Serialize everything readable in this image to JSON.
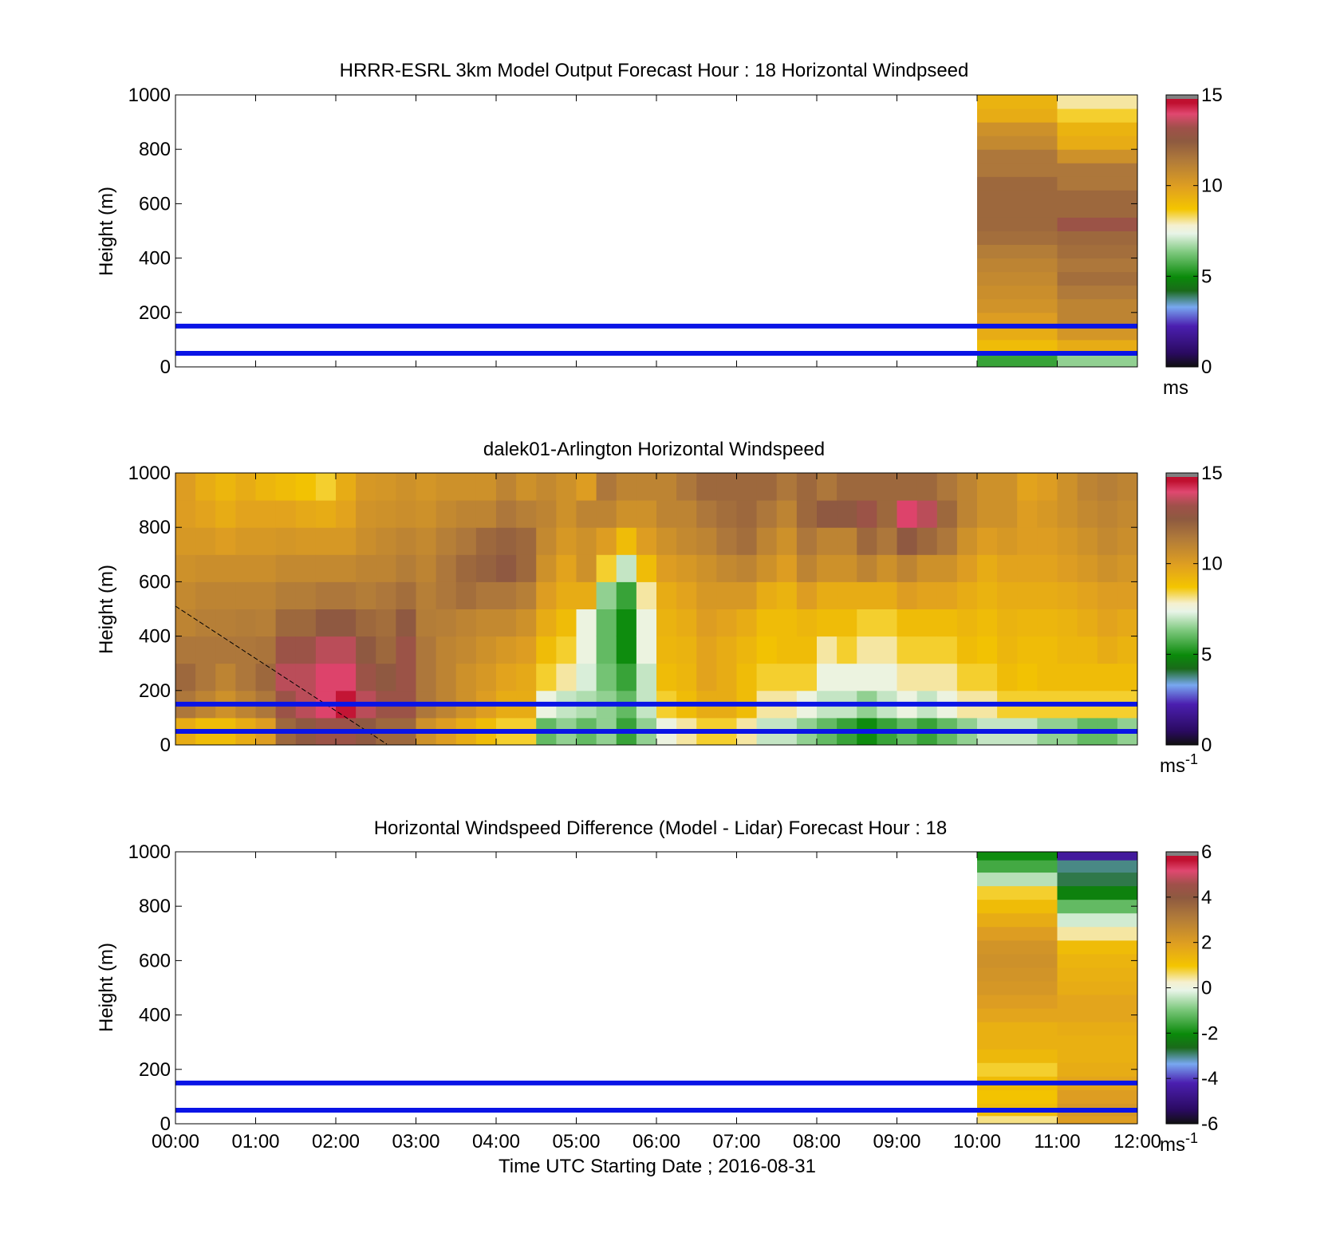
{
  "figure": {
    "xlabel": "Time UTC  Starting Date ; 2016-08-31",
    "x_ticks": [
      "00:00",
      "01:00",
      "02:00",
      "03:00",
      "04:00",
      "05:00",
      "06:00",
      "07:00",
      "08:00",
      "09:00",
      "10:00",
      "11:00",
      "12:00"
    ],
    "y_ticks": [
      "0",
      "200",
      "400",
      "600",
      "800",
      "1000"
    ],
    "ylabel": "Height (m)"
  },
  "colors": {
    "overlay_line": "#0a14e6",
    "colormap_stops": [
      "#101010",
      "#2a0a60",
      "#4b1fb0",
      "#78a8f0",
      "#1a6a1a",
      "#0a8a0a",
      "#7cc87c",
      "#e8f4e8",
      "#f5f0d0",
      "#f4c500",
      "#e0a020",
      "#b07a3a",
      "#8e5a40",
      "#a0504a",
      "#e04870",
      "#c01030",
      "#808080"
    ]
  },
  "chart_data": [
    {
      "type": "heatmap",
      "title": "HRRR-ESRL 3km Model Output   Forecast Hour : 18 Horizontal Windpseed",
      "ylabel": "Height (m)",
      "xlim": [
        "00:00",
        "12:00"
      ],
      "ylim": [
        0,
        1000
      ],
      "grid": false,
      "colorbar": {
        "ticks": [
          "0",
          "5",
          "10",
          "15"
        ],
        "range": [
          0,
          15
        ],
        "unit": "ms"
      },
      "overlay_lines_height_m": [
        150,
        50
      ],
      "columns": [
        {
          "time_start": "10:00",
          "time_end": "11:00",
          "height_m": [
            25,
            75,
            125,
            175,
            225,
            275,
            325,
            375,
            425,
            475,
            525,
            575,
            625,
            675,
            725,
            775,
            825,
            875,
            925,
            975
          ],
          "speed_ms": [
            5.5,
            9.0,
            9.5,
            10.0,
            10.4,
            10.6,
            10.8,
            11.0,
            11.3,
            11.8,
            12.0,
            12.0,
            12.0,
            12.0,
            11.5,
            11.5,
            10.8,
            10.5,
            9.5,
            9.3
          ]
        },
        {
          "time_start": "11:00",
          "time_end": "12:00",
          "height_m": [
            25,
            75,
            125,
            175,
            225,
            275,
            325,
            375,
            425,
            475,
            525,
            575,
            625,
            675,
            725,
            775,
            825,
            875,
            925,
            975
          ],
          "speed_ms": [
            6.5,
            9.5,
            10.3,
            11.0,
            11.0,
            11.4,
            11.8,
            11.5,
            11.8,
            12.0,
            13.0,
            12.0,
            12.0,
            11.5,
            11.5,
            10.5,
            9.5,
            9.3,
            8.5,
            8.0
          ]
        }
      ]
    },
    {
      "type": "heatmap",
      "title": "dalek01-Arlington  Horizontal Windspeed",
      "ylabel": "Height (m)",
      "xlim": [
        "00:00",
        "12:00"
      ],
      "ylim": [
        0,
        1000
      ],
      "grid": false,
      "colorbar": {
        "ticks": [
          "0",
          "5",
          "10",
          "15"
        ],
        "range": [
          0,
          15
        ],
        "unit": "ms-1"
      },
      "overlay_lines_height_m": [
        150,
        50
      ],
      "time_bins": [
        "00:00",
        "00:15",
        "00:30",
        "00:45",
        "01:00",
        "01:15",
        "01:30",
        "01:45",
        "02:00",
        "02:15",
        "02:30",
        "02:45",
        "03:00",
        "03:15",
        "03:30",
        "03:45",
        "04:00",
        "04:15",
        "04:30",
        "04:45",
        "05:00",
        "05:15",
        "05:30",
        "05:45",
        "06:00",
        "06:15",
        "06:30",
        "06:45",
        "07:00",
        "07:15",
        "07:30",
        "07:45",
        "08:00",
        "08:15",
        "08:30",
        "08:45",
        "09:00",
        "09:15",
        "09:30",
        "09:45",
        "10:00",
        "10:15",
        "10:30",
        "10:45",
        "11:00",
        "11:15",
        "11:30",
        "11:45"
      ],
      "height_bins_m": [
        0,
        100,
        200,
        300,
        400,
        500,
        600,
        700,
        800,
        900
      ],
      "speed_ms": [
        [
          9.5,
          11.5,
          12,
          11.5,
          11,
          10.8,
          10.5,
          10.2,
          10,
          10
        ],
        [
          9,
          11,
          11.5,
          11.5,
          11.2,
          11,
          10.6,
          10.2,
          9.8,
          9.5
        ],
        [
          9,
          10.5,
          11,
          11.5,
          11.2,
          11,
          10.6,
          10,
          9.5,
          9.2
        ],
        [
          9.5,
          11,
          11.5,
          11.5,
          11.3,
          11,
          10.6,
          10.2,
          9.8,
          9.5
        ],
        [
          10,
          11.5,
          12,
          11.6,
          11.2,
          11,
          10.6,
          10.2,
          9.8,
          9.2
        ],
        [
          12,
          13,
          13.5,
          13,
          12,
          11.3,
          10.8,
          10.3,
          9.8,
          9
        ],
        [
          12.5,
          13.5,
          13.5,
          13,
          12,
          11.3,
          10.8,
          10.2,
          9.6,
          8.8
        ],
        [
          13,
          14,
          14,
          13.5,
          12.5,
          11.5,
          10.8,
          10.2,
          9.5,
          8.5
        ],
        [
          13,
          14.5,
          14,
          13.5,
          12.5,
          11.5,
          10.8,
          10.2,
          9.8,
          9.5
        ],
        [
          12.5,
          13.5,
          13,
          12.5,
          12,
          11.3,
          11,
          10.6,
          10.4,
          10.2
        ],
        [
          12,
          13,
          12.5,
          12,
          11.8,
          11.5,
          11,
          10.8,
          10.5,
          10.3
        ],
        [
          12,
          13,
          13,
          13,
          12.5,
          11.8,
          11.3,
          11,
          10.6,
          10.5
        ],
        [
          10.5,
          11.5,
          11.5,
          11.5,
          11.3,
          11.2,
          11,
          10.8,
          10.5,
          10.3
        ],
        [
          10,
          11,
          11,
          11,
          11.2,
          11.5,
          11.5,
          11.2,
          10.8,
          10.5
        ],
        [
          9.5,
          10.5,
          10.5,
          10.8,
          11,
          11.8,
          12,
          11.5,
          11,
          10.5
        ],
        [
          9,
          10,
          10.2,
          10.5,
          10.8,
          11.5,
          12.2,
          12,
          11,
          10.5
        ],
        [
          8.5,
          9.5,
          9.8,
          10.2,
          10.8,
          11.5,
          12.5,
          12.2,
          11.5,
          11
        ],
        [
          8.5,
          9.5,
          9.6,
          10,
          10.5,
          11.2,
          12,
          12,
          11.2,
          10.5
        ],
        [
          6,
          7.5,
          8.5,
          9,
          9.5,
          10,
          10.5,
          10.8,
          11,
          10.8
        ],
        [
          6.5,
          7,
          8,
          8.5,
          9,
          9.5,
          9.8,
          10.2,
          10.5,
          10.5
        ],
        [
          6,
          6.8,
          7.2,
          7.5,
          7.5,
          9.5,
          10.5,
          10.5,
          11,
          10
        ],
        [
          6.5,
          6.5,
          6.2,
          6,
          6,
          6.5,
          8.5,
          10,
          11,
          11.5
        ],
        [
          5.5,
          6,
          5.5,
          5,
          5,
          5.5,
          7,
          9,
          10.5,
          11
        ],
        [
          6.5,
          7,
          7,
          7.5,
          7.5,
          8,
          9,
          10,
          10.5,
          11
        ],
        [
          7.5,
          8.5,
          9,
          9.2,
          9.3,
          9.5,
          10,
          10.5,
          11,
          11
        ],
        [
          8,
          9,
          9.2,
          9.3,
          9.5,
          9.8,
          10.2,
          10.8,
          11,
          11.5
        ],
        [
          8.5,
          9.5,
          9.8,
          9.8,
          10,
          10.2,
          10.5,
          11,
          11.5,
          12
        ],
        [
          8.5,
          9.5,
          9.5,
          9.5,
          9.8,
          10.2,
          10.8,
          11.5,
          11.8,
          12
        ],
        [
          8,
          9,
          9,
          9.2,
          9.5,
          10.2,
          11,
          11.8,
          12,
          12
        ],
        [
          7,
          8,
          8.5,
          8.8,
          9,
          9.5,
          10.5,
          11,
          11.5,
          12
        ],
        [
          7,
          8,
          8.5,
          9,
          9,
          9.3,
          10,
          10.5,
          11,
          11.5
        ],
        [
          6.5,
          7.5,
          8.5,
          9,
          9.2,
          10,
          11,
          11.5,
          12,
          12
        ],
        [
          6,
          7,
          7.5,
          8,
          9,
          9.5,
          10.5,
          11,
          12.5,
          11.5
        ],
        [
          5.5,
          7,
          7.5,
          8.5,
          9,
          9.5,
          10.5,
          11,
          12.5,
          12
        ],
        [
          5,
          6.5,
          7.5,
          8,
          8.5,
          9.5,
          11,
          12,
          13,
          12
        ],
        [
          5.5,
          7,
          7.5,
          8,
          8.5,
          9.5,
          10.5,
          11.5,
          12,
          12
        ],
        [
          6,
          7.5,
          8,
          8.5,
          9,
          10,
          11,
          12.5,
          14,
          12
        ],
        [
          5.5,
          7,
          8,
          8.5,
          9,
          9.8,
          10.5,
          12,
          13.5,
          12
        ],
        [
          6,
          7.5,
          8,
          8.5,
          9,
          9.8,
          10.5,
          11.5,
          12,
          11.5
        ],
        [
          6.5,
          8,
          8.5,
          9,
          9.2,
          9.5,
          10,
          10.5,
          11,
          11
        ],
        [
          7,
          8,
          8.5,
          8.8,
          9,
          9.3,
          9.5,
          10,
          10.5,
          10.5
        ],
        [
          7,
          8.5,
          9,
          9.2,
          9.3,
          9.5,
          9.8,
          10.2,
          10.5,
          10.5
        ],
        [
          7,
          8.5,
          8.8,
          9,
          9.2,
          9.5,
          9.8,
          10,
          10,
          9.8
        ],
        [
          6.5,
          8.5,
          9,
          9,
          9.2,
          9.5,
          9.8,
          10,
          10.2,
          10
        ],
        [
          6.5,
          8.5,
          9,
          9.2,
          9.3,
          9.6,
          10,
          10.2,
          10.5,
          10.5
        ],
        [
          6,
          8.5,
          9,
          9.2,
          9.5,
          9.8,
          10.2,
          10.5,
          10.8,
          11
        ],
        [
          6,
          8.5,
          9,
          9.5,
          9.8,
          10,
          10.5,
          10.8,
          11,
          11.2
        ],
        [
          6.5,
          8.5,
          9,
          9.3,
          9.6,
          10,
          10.3,
          10.6,
          10.8,
          11
        ]
      ]
    },
    {
      "type": "heatmap",
      "title": "Horizontal Windspeed Difference (Model - Lidar) Forecast Hour : 18",
      "ylabel": "Height (m)",
      "xlabel": "Time UTC  Starting Date ; 2016-08-31",
      "xlim": [
        "00:00",
        "12:00"
      ],
      "ylim": [
        0,
        1000
      ],
      "grid": false,
      "colorbar": {
        "ticks": [
          "-6",
          "-4",
          "-2",
          "0",
          "2",
          "4",
          "6"
        ],
        "range": [
          -6,
          6
        ],
        "unit": "ms-1"
      },
      "overlay_lines_height_m": [
        150,
        50
      ],
      "columns": [
        {
          "time_start": "10:00",
          "time_end": "11:00",
          "height_m": [
            10,
            50,
            100,
            150,
            200,
            250,
            300,
            350,
            400,
            450,
            500,
            550,
            600,
            650,
            700,
            750,
            800,
            850,
            900,
            950,
            990
          ],
          "diff_ms": [
            0.5,
            1.2,
            1.0,
            1.2,
            0.8,
            1.3,
            1.5,
            1.5,
            1.8,
            2.0,
            2.2,
            2.3,
            2.4,
            2.3,
            2.0,
            1.6,
            1.2,
            0.8,
            -0.5,
            -1.5,
            -2.0
          ]
        },
        {
          "time_start": "11:00",
          "time_end": "12:00",
          "height_m": [
            10,
            50,
            100,
            150,
            200,
            250,
            300,
            350,
            400,
            450,
            500,
            550,
            600,
            650,
            700,
            750,
            800,
            850,
            900,
            950,
            990
          ],
          "diff_ms": [
            2.0,
            2.2,
            2.0,
            1.8,
            1.6,
            1.5,
            1.5,
            1.6,
            1.8,
            1.8,
            1.6,
            1.5,
            1.4,
            1.2,
            0.4,
            -0.3,
            -1.2,
            -2.2,
            -2.8,
            -3.0,
            -4.5
          ]
        }
      ]
    }
  ]
}
